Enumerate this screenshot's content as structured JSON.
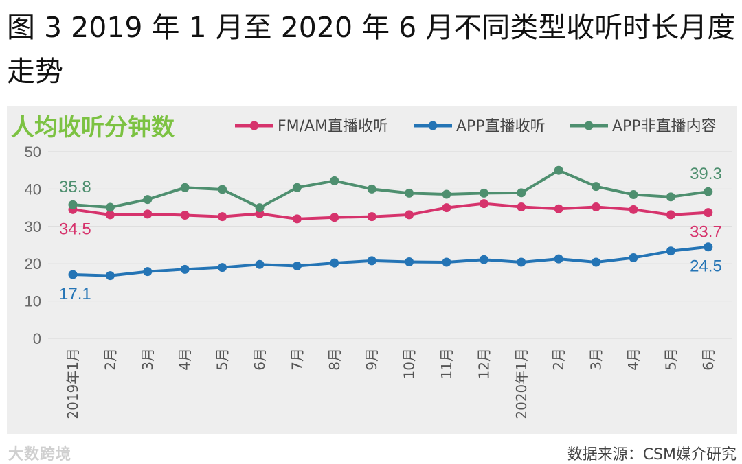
{
  "figure": {
    "title": "图 3 2019 年 1 月至 2020 年 6 月不同类型收听时长月度走势",
    "source": "数据来源：CSM媒介研究",
    "watermark": "大数跨境"
  },
  "colors": {
    "fm_am": "#d6336c",
    "app_live": "#2474b5",
    "app_nonlive": "#4e8f6f",
    "metric_label": "#7cc242",
    "grid": "#d8d8d8",
    "panel": "#eeeeee"
  },
  "chart_data": {
    "type": "line",
    "metric_label": "人均收听分钟数",
    "categories": [
      "2019年1月",
      "2月",
      "3月",
      "4月",
      "5月",
      "6月",
      "7月",
      "8月",
      "9月",
      "10月",
      "11月",
      "12月",
      "2020年1月",
      "2月",
      "3月",
      "4月",
      "5月",
      "6月"
    ],
    "ylim": [
      0,
      50
    ],
    "yticks": [
      0,
      10,
      20,
      30,
      40,
      50
    ],
    "grid": true,
    "legend_position": "top-right",
    "series": [
      {
        "name": "FM/AM直播收听",
        "color_key": "fm_am",
        "values": [
          34.5,
          33.1,
          33.3,
          33.0,
          32.6,
          33.4,
          32.0,
          32.4,
          32.6,
          33.1,
          35.0,
          36.1,
          35.2,
          34.7,
          35.2,
          34.5,
          33.1,
          33.7
        ],
        "labels": [
          {
            "index": 0,
            "text": "34.5",
            "pos": "below"
          },
          {
            "index": 17,
            "text": "33.7",
            "pos": "below"
          }
        ]
      },
      {
        "name": "APP直播收听",
        "color_key": "app_live",
        "values": [
          17.1,
          16.8,
          17.9,
          18.5,
          19.0,
          19.8,
          19.4,
          20.2,
          20.8,
          20.5,
          20.4,
          21.1,
          20.4,
          21.3,
          20.4,
          21.6,
          23.4,
          24.5
        ],
        "labels": [
          {
            "index": 0,
            "text": "17.1",
            "pos": "below"
          },
          {
            "index": 17,
            "text": "24.5",
            "pos": "below"
          }
        ]
      },
      {
        "name": "APP非直播内容",
        "color_key": "app_nonlive",
        "values": [
          35.8,
          35.1,
          37.2,
          40.4,
          39.9,
          35.0,
          40.4,
          42.2,
          40.0,
          38.9,
          38.6,
          38.9,
          39.0,
          45.0,
          40.7,
          38.5,
          37.9,
          39.3
        ],
        "labels": [
          {
            "index": 0,
            "text": "35.8",
            "pos": "above"
          },
          {
            "index": 17,
            "text": "39.3",
            "pos": "above"
          }
        ]
      }
    ]
  }
}
